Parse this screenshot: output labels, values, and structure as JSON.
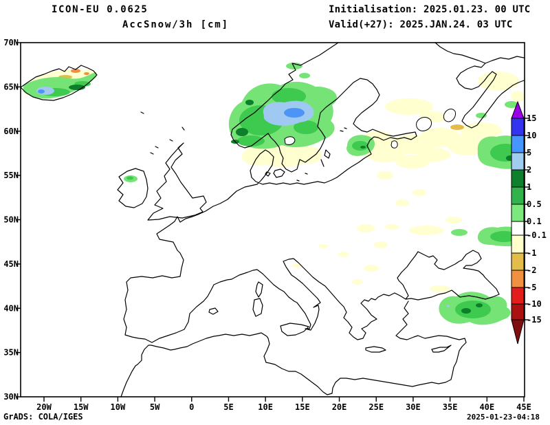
{
  "header": {
    "model": "ICON-EU 0.0625",
    "variable": "AccSnow/3h [cm]",
    "init": "Initialisation: 2025.01.23. 00 UTC",
    "valid": "Valid(+27): 2025.JAN.24. 03 UTC"
  },
  "footer": {
    "credit": "GrADS: COLA/IGES",
    "timestamp": "2025-01-23-04:18"
  },
  "axes": {
    "lat_labels": [
      "70N",
      "65N",
      "60N",
      "55N",
      "50N",
      "45N",
      "40N",
      "35N",
      "30N"
    ],
    "lon_labels": [
      "20W",
      "15W",
      "10W",
      "5W",
      "0",
      "5E",
      "10E",
      "15E",
      "20E",
      "25E",
      "30E",
      "35E",
      "40E",
      "45E"
    ]
  },
  "colorbar": {
    "unit": "cm",
    "tick_labels_top_to_bottom": [
      "15",
      "10",
      "5",
      "2",
      "1",
      "0.5",
      "0.1",
      "-0.1",
      "-1",
      "-2",
      "-5",
      "-10",
      "-15"
    ],
    "segments": [
      {
        "range": "> 15",
        "color": "#9a00e6",
        "shape": "arrow-up"
      },
      {
        "range": "10 to 15",
        "color": "#3333f0"
      },
      {
        "range": "5 to 10",
        "color": "#4796ff"
      },
      {
        "range": "2 to 5",
        "color": "#a0ccf0"
      },
      {
        "range": "1 to 2",
        "color": "#0e7f2c"
      },
      {
        "range": "0.5 to 1",
        "color": "#2fb34a"
      },
      {
        "range": "0.1 to 0.5",
        "color": "#7de87d"
      },
      {
        "range": "-0.1 to 0.1",
        "color": "#ffffff"
      },
      {
        "range": "-1 to -0.1",
        "color": "#ffffcc"
      },
      {
        "range": "-2 to -1",
        "color": "#e3bc4a"
      },
      {
        "range": "-5 to -2",
        "color": "#f09040"
      },
      {
        "range": "-10 to -5",
        "color": "#e31c1c"
      },
      {
        "range": "-15 to -10",
        "color": "#aa1111"
      },
      {
        "range": "< -15",
        "color": "#7f0e0e",
        "shape": "arrow-down"
      }
    ]
  },
  "chart_data": {
    "type": "heatmap",
    "subtype": "filled-contour weather map (plate carrée lat/lon grid)",
    "title": "ICON-EU 0.0625 — AccSnow/3h [cm]",
    "extent": {
      "lon_deg": [
        -23.2,
        45.0
      ],
      "lat_deg": [
        30.0,
        70.0
      ]
    },
    "levels_cm": [
      15,
      10,
      5,
      2,
      1,
      0.5,
      0.1,
      -0.1,
      -1,
      -2,
      -5,
      -10,
      -15
    ],
    "regions": [
      {
        "area": "Central Sweden / Gulf of Bothnia inland",
        "value_cm": "2 to 5",
        "note": "light-blue core inside large green area"
      },
      {
        "area": "Norwegian mountains / Trøndelag",
        "value_cm": "0.5 to 2",
        "note": "green with dark-green 1–2 cm spots"
      },
      {
        "area": "Northern Finland / Lapland",
        "value_cm": "0.1 to 1"
      },
      {
        "area": "Iceland south half",
        "value_cm": "0.1 to 5",
        "note": "greens with small blue 2–5 cm spot"
      },
      {
        "area": "Iceland north half",
        "value_cm": "-2 to -0.1",
        "note": "cream/yellow-orange = snow loss"
      },
      {
        "area": "Southern Sweden, Baltic states, NW Russia",
        "value_cm": "-1 to -0.1",
        "note": "widespread pale cream melt area"
      },
      {
        "area": "Estonia / Gulf of Riga",
        "value_cm": "0.1 to 1"
      },
      {
        "area": "Far NE of domain (upper Volga / Urals edge)",
        "value_cm": "0.1 to 1"
      },
      {
        "area": "Steppe north of Caucasus at east edge",
        "value_cm": "0.1 to 1"
      },
      {
        "area": "Eastern Turkey / Caucasus highlands",
        "value_cm": "0.1 to 2",
        "note": "green with dark-green spots"
      },
      {
        "area": "NW Ireland",
        "value_cm": "0.1 to 1",
        "note": "small isolated spot"
      },
      {
        "area": "Central Europe / Balkans",
        "value_cm": "-1 to -0.1",
        "note": "scattered pale specks"
      }
    ],
    "legend_position": "right",
    "grid": "off"
  }
}
